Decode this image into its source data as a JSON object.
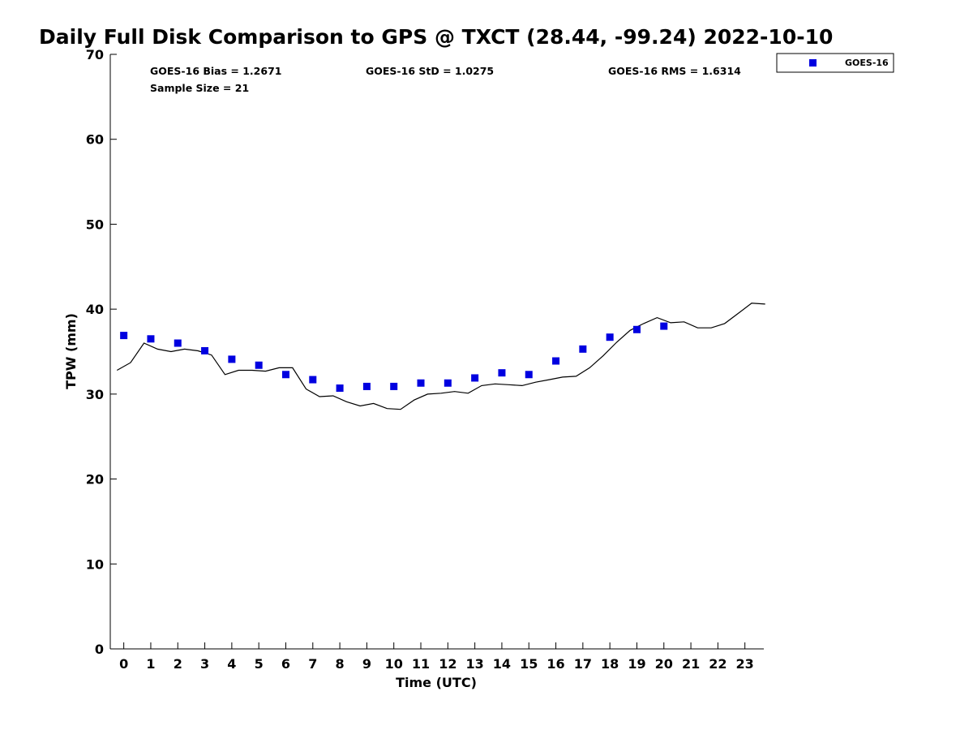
{
  "chart_data": {
    "type": "scatter",
    "title": "Daily Full Disk Comparison to GPS @ TXCT (28.44, -99.24) 2022-10-10",
    "xlabel": "Time (UTC)",
    "ylabel": "TPW (mm)",
    "xlim": [
      -0.5,
      23.7
    ],
    "ylim": [
      0,
      70
    ],
    "xticks": [
      0,
      1,
      2,
      3,
      4,
      5,
      6,
      7,
      8,
      9,
      10,
      11,
      12,
      13,
      14,
      15,
      16,
      17,
      18,
      19,
      20,
      21,
      22,
      23
    ],
    "yticks": [
      0,
      10,
      20,
      30,
      40,
      50,
      60,
      70
    ],
    "grid": false,
    "legend_position": "top-right outside",
    "stats": {
      "bias": "GOES-16 Bias = 1.2671",
      "std": "GOES-16 StD = 1.0275",
      "rms": "GOES-16 RMS = 1.6314",
      "sample": "Sample Size = 21"
    },
    "series": [
      {
        "name": "GOES-16",
        "kind": "scatter",
        "marker": "square",
        "color": "#0000e0",
        "x": [
          0,
          1,
          2,
          3,
          4,
          5,
          6,
          7,
          8,
          9,
          10,
          11,
          12,
          13,
          14,
          15,
          16,
          17,
          18,
          19,
          20
        ],
        "y": [
          36.9,
          36.5,
          36.0,
          35.1,
          34.1,
          33.4,
          32.3,
          31.7,
          30.7,
          30.9,
          30.9,
          31.3,
          31.3,
          31.9,
          32.5,
          32.3,
          33.9,
          35.3,
          36.7,
          37.6,
          38.0
        ]
      },
      {
        "kind": "line",
        "color": "#000000",
        "x": [
          -0.25,
          0.25,
          0.75,
          1.25,
          1.75,
          2.25,
          2.75,
          3.25,
          3.75,
          4.25,
          4.75,
          5.25,
          5.75,
          6.25,
          6.75,
          7.25,
          7.75,
          8.25,
          8.75,
          9.25,
          9.75,
          10.25,
          10.75,
          11.25,
          11.75,
          12.25,
          12.75,
          13.25,
          13.75,
          14.25,
          14.75,
          15.25,
          15.75,
          16.25,
          16.75,
          17.25,
          17.75,
          18.25,
          18.75,
          19.25,
          19.75,
          20.25,
          20.75,
          21.25,
          21.75,
          22.25,
          22.75,
          23.25,
          23.75
        ],
        "y": [
          32.8,
          33.7,
          36.0,
          35.3,
          35.0,
          35.3,
          35.1,
          34.6,
          32.3,
          32.8,
          32.8,
          32.7,
          33.1,
          33.1,
          30.6,
          29.7,
          29.8,
          29.1,
          28.6,
          28.9,
          28.3,
          28.2,
          29.3,
          30.0,
          30.1,
          30.3,
          30.1,
          31.0,
          31.2,
          31.1,
          31.0,
          31.4,
          31.7,
          32.0,
          32.1,
          33.1,
          34.5,
          36.1,
          37.5,
          38.3,
          39.0,
          38.4,
          38.5,
          37.8,
          37.8,
          38.3,
          39.5,
          40.7,
          40.6
        ]
      }
    ]
  }
}
